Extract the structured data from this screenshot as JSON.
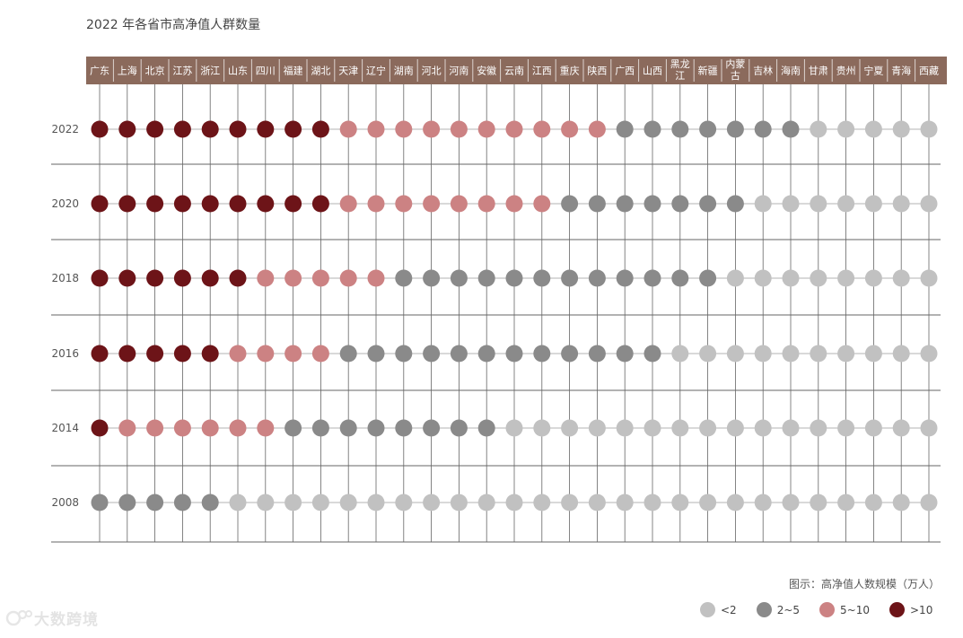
{
  "title": "2022 年各省市高净值人群数量",
  "note": "图示：高净值人数规模（万人）",
  "watermark": "大数跨境",
  "colors": {
    "header_bg": "#8b6a5c",
    "header_text": "#ffffff",
    "line": "#666666",
    "c1": "#c1c1c1",
    "c2": "#8a8a8a",
    "c3": "#cc8283",
    "c4": "#6d1418"
  },
  "legend": [
    {
      "key": "c1",
      "label": "<2"
    },
    {
      "key": "c2",
      "label": "2~5"
    },
    {
      "key": "c3",
      "label": "5~10"
    },
    {
      "key": "c4",
      "label": ">10"
    }
  ],
  "chart_data": {
    "type": "heatmap",
    "title": "2022 年各省市高净值人群数量",
    "provinces": [
      "广东",
      "上海",
      "北京",
      "江苏",
      "浙江",
      "山东",
      "四川",
      "福建",
      "湖北",
      "天津",
      "辽宁",
      "湖南",
      "河北",
      "河南",
      "安徽",
      "云南",
      "江西",
      "重庆",
      "陕西",
      "广西",
      "山西",
      "黑龙江",
      "新疆",
      "内蒙古",
      "吉林",
      "海南",
      "甘肃",
      "贵州",
      "宁夏",
      "青海",
      "西藏"
    ],
    "header_labels": [
      "广东",
      "上海",
      "北京",
      "江苏",
      "浙江",
      "山东",
      "四川",
      "福建",
      "湖北",
      "天津",
      "辽宁",
      "湖南",
      "河北",
      "河南",
      "安徽",
      "云南",
      "江西",
      "重庆",
      "陕西",
      "广西",
      "山西",
      "黑龙\n江",
      "新疆",
      "内蒙\n古",
      "吉林",
      "海南",
      "甘肃",
      "贵州",
      "宁夏",
      "青海",
      "西藏"
    ],
    "category_labels": [
      "<2",
      "2~5",
      "5~10",
      ">10"
    ],
    "rows": [
      {
        "year": "2022",
        "levels": [
          4,
          4,
          4,
          4,
          4,
          4,
          4,
          4,
          4,
          3,
          3,
          3,
          3,
          3,
          3,
          3,
          3,
          3,
          3,
          2,
          2,
          2,
          2,
          2,
          2,
          2,
          1,
          1,
          1,
          1,
          1
        ]
      },
      {
        "year": "2020",
        "levels": [
          4,
          4,
          4,
          4,
          4,
          4,
          4,
          4,
          4,
          3,
          3,
          3,
          3,
          3,
          3,
          3,
          3,
          2,
          2,
          2,
          2,
          2,
          2,
          2,
          1,
          1,
          1,
          1,
          1,
          1,
          1
        ]
      },
      {
        "year": "2018",
        "levels": [
          4,
          4,
          4,
          4,
          4,
          4,
          3,
          3,
          3,
          3,
          3,
          2,
          2,
          2,
          2,
          2,
          2,
          2,
          2,
          2,
          2,
          2,
          2,
          1,
          1,
          1,
          1,
          1,
          1,
          1,
          1
        ]
      },
      {
        "year": "2016",
        "levels": [
          4,
          4,
          4,
          4,
          4,
          3,
          3,
          3,
          3,
          2,
          2,
          2,
          2,
          2,
          2,
          2,
          2,
          2,
          2,
          2,
          2,
          1,
          1,
          1,
          1,
          1,
          1,
          1,
          1,
          1,
          1
        ]
      },
      {
        "year": "2014",
        "levels": [
          4,
          3,
          3,
          3,
          3,
          3,
          3,
          2,
          2,
          2,
          2,
          2,
          2,
          2,
          2,
          1,
          1,
          1,
          1,
          1,
          1,
          1,
          1,
          1,
          1,
          1,
          1,
          1,
          1,
          1,
          1
        ]
      },
      {
        "year": "2008",
        "levels": [
          2,
          2,
          2,
          2,
          2,
          1,
          1,
          1,
          1,
          1,
          1,
          1,
          1,
          1,
          1,
          1,
          1,
          1,
          1,
          1,
          1,
          1,
          1,
          1,
          1,
          1,
          1,
          1,
          1,
          1,
          1
        ]
      }
    ]
  }
}
